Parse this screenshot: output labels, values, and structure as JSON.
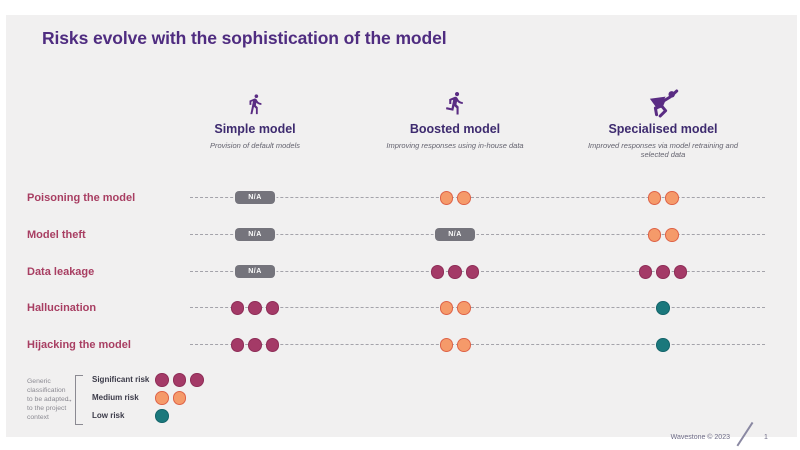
{
  "title": "Risks evolve with the sophistication of the model",
  "columns": [
    {
      "icon": "walking-person-icon",
      "label": "Simple model",
      "description": "Provision of default models"
    },
    {
      "icon": "running-person-icon",
      "label": "Boosted model",
      "description": "Improving responses using in-house data"
    },
    {
      "icon": "superhero-icon",
      "label": "Specialised model",
      "description": "Improved responses via model retraining and selected data"
    }
  ],
  "na_label": "N/A",
  "rows": [
    {
      "label": "Poisoning the model",
      "cells": [
        "na",
        "medium",
        "medium"
      ]
    },
    {
      "label": "Model theft",
      "cells": [
        "na",
        "na",
        "medium"
      ]
    },
    {
      "label": "Data leakage",
      "cells": [
        "na",
        "significant",
        "significant"
      ]
    },
    {
      "label": "Hallucination",
      "cells": [
        "significant",
        "medium",
        "low"
      ]
    },
    {
      "label": "Hijacking the model",
      "cells": [
        "significant",
        "medium",
        "low"
      ]
    }
  ],
  "risk_levels": {
    "significant": {
      "label": "Significant risk",
      "dots": 3,
      "fill": "#a43a67",
      "border": "#8e2d57"
    },
    "medium": {
      "label": "Medium risk",
      "dots": 2,
      "fill": "#f59a6a",
      "border": "#de6247"
    },
    "low": {
      "label": "Low risk",
      "dots": 1,
      "fill": "#1b787c",
      "border": "#14646a"
    }
  },
  "legend": {
    "note_lines": [
      "Generic",
      "classification",
      "to be adapted",
      "to the project",
      "context"
    ],
    "arrow": "→",
    "order": [
      "significant",
      "medium",
      "low"
    ]
  },
  "footer": {
    "copyright": "Wavestone © 2023",
    "page": "1"
  },
  "colors": {
    "slide_bg": "#f1f0f0",
    "title": "#4f2c80",
    "column_title": "#3e2b6f",
    "row_label": "#a83e62",
    "na_badge": "#75747c",
    "dashed_line": "#a4a3aa",
    "icon_purple": "#5a2c83"
  }
}
